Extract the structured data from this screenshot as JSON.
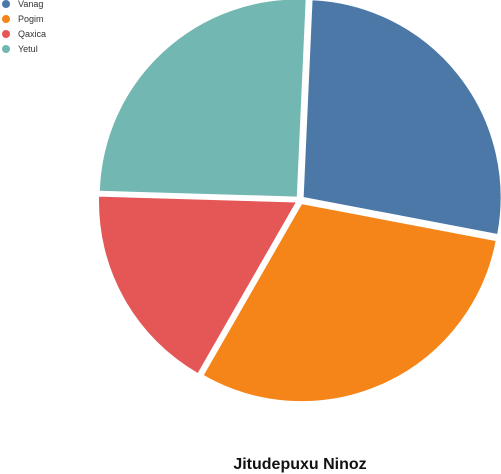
{
  "chart_data": {
    "type": "pie",
    "title": "Jitudepuxu Ninoz",
    "categories": [
      "Vanag",
      "Pogim",
      "Qaxica",
      "Yetul"
    ],
    "values": [
      27,
      30,
      17,
      25
    ],
    "colors": [
      "#4c78a8",
      "#f58518",
      "#e45756",
      "#72b7b2"
    ],
    "legend_position": "top-left",
    "exploded": true
  }
}
